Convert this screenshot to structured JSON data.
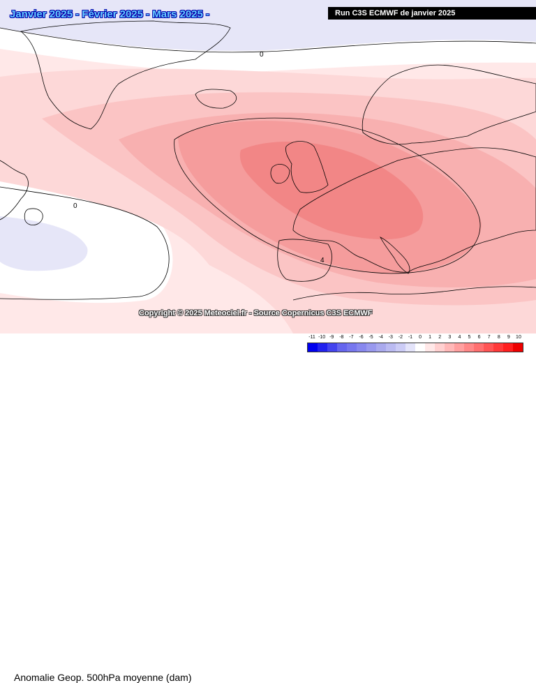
{
  "title": "Janvier 2025 - Février 2025 - Mars 2025 -",
  "run_info": "Run C3S ECMWF de janvier 2025",
  "copyright": "Copyright © 2025 Meteociel.fr - Source Copernicus C3S ECMWF",
  "caption": "Anomalie Geop. 500hPa moyenne (dam)",
  "contour_labels": [
    "0",
    "0",
    "4"
  ],
  "legend": {
    "labels": [
      "-11",
      "-10",
      "-9",
      "-8",
      "-7",
      "-6",
      "-5",
      "-4",
      "-3",
      "-2",
      "-1",
      "0",
      "1",
      "2",
      "3",
      "4",
      "5",
      "6",
      "7",
      "8",
      "9",
      "10"
    ],
    "colors": [
      "#0000ee",
      "#2222ee",
      "#4444ee",
      "#6666ee",
      "#7777ee",
      "#8888ee",
      "#9999ee",
      "#aaaaee",
      "#bbbbf2",
      "#ccccf6",
      "#e4e4fa",
      "#ffffff",
      "#ffe8e8",
      "#ffd0d0",
      "#ffb8b8",
      "#ffa0a0",
      "#ff8888",
      "#ff7070",
      "#ff5555",
      "#ff3a3a",
      "#ff1f1f",
      "#ee0000"
    ]
  },
  "colors": {
    "ocean_neutral": "#ffffff",
    "anom_neg1": "#e6e6f8",
    "anom_pos1": "#fde3e3",
    "anom_pos2": "#fbcbcb",
    "anom_pos3": "#f8b2b2",
    "anom_pos4": "#f59a9a",
    "anom_pos5": "#f28484"
  }
}
